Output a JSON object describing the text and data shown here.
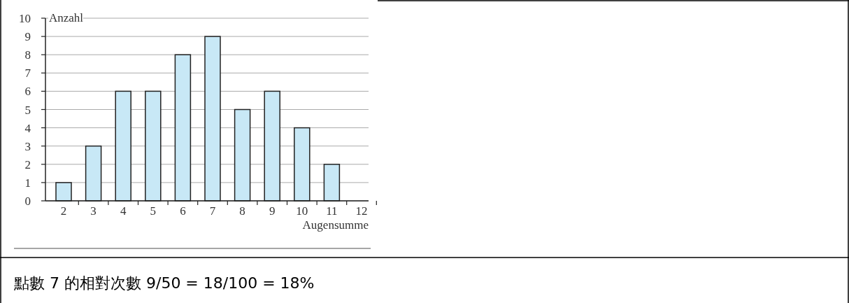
{
  "chart_data": {
    "type": "bar",
    "xlabel": "Augensumme",
    "ylabel": "Anzahl",
    "categories": [
      "2",
      "3",
      "4",
      "5",
      "6",
      "7",
      "8",
      "9",
      "10",
      "11",
      "12"
    ],
    "values": [
      1,
      3,
      6,
      6,
      8,
      9,
      5,
      6,
      4,
      2,
      0
    ],
    "color": "#c8e8f6",
    "ylim": [
      0,
      10
    ],
    "yticks": [
      0,
      1,
      2,
      3,
      4,
      5,
      6,
      7,
      8,
      9,
      10
    ],
    "grid": "y",
    "annotations": [
      "點數 7 的相對次數 9/50 = 18/100 = 18%"
    ]
  }
}
